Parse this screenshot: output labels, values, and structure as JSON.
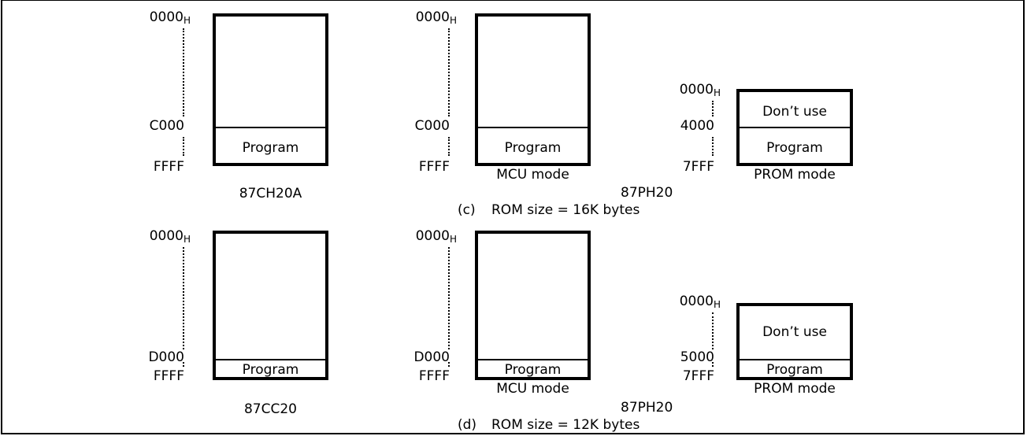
{
  "section_c": {
    "col1": {
      "addr_top": "0000",
      "addr_top_sub": "H",
      "addr_mid": "C000",
      "addr_bottom": "FFFF",
      "region_label": "Program",
      "chip_name": "87CH20A"
    },
    "col2": {
      "addr_top": "0000",
      "addr_top_sub": "H",
      "addr_mid": "C000",
      "addr_bottom": "FFFF",
      "region_label": "Program",
      "mode_label": "MCU mode"
    },
    "col3": {
      "addr_top": "0000",
      "addr_top_sub": "H",
      "addr_mid": "4000",
      "addr_bottom": "7FFF",
      "upper_label": "Don’t use",
      "region_label": "Program",
      "mode_label": "PROM mode",
      "chip_name": "87PH20"
    },
    "caption_tag": "(c)",
    "caption_text": "ROM size = 16K bytes"
  },
  "section_d": {
    "col1": {
      "addr_top": "0000",
      "addr_top_sub": "H",
      "addr_mid": "D000",
      "addr_bottom": "FFFF",
      "region_label": "Program",
      "chip_name": "87CC20"
    },
    "col2": {
      "addr_top": "0000",
      "addr_top_sub": "H",
      "addr_mid": "D000",
      "addr_bottom": "FFFF",
      "region_label": "Program",
      "mode_label": "MCU mode"
    },
    "col3": {
      "addr_top": "0000",
      "addr_top_sub": "H",
      "addr_mid": "5000",
      "addr_bottom": "7FFF",
      "upper_label": "Don’t use",
      "region_label": "Program",
      "mode_label": "PROM mode",
      "chip_name": "87PH20"
    },
    "caption_tag": "(d)",
    "caption_text": "ROM size = 12K bytes"
  }
}
